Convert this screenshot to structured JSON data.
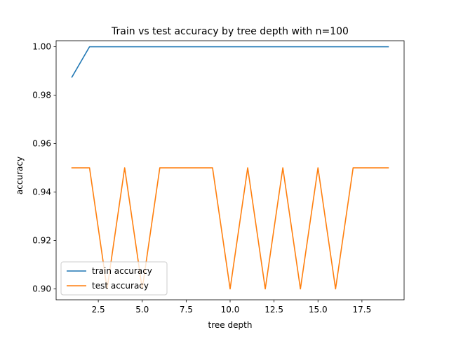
{
  "chart_data": {
    "type": "line",
    "title": "Train vs test accuracy by tree depth with n=100",
    "xlabel": "tree depth",
    "ylabel": "accuracy",
    "xlim": [
      0.1,
      19.9
    ],
    "ylim": [
      0.8955,
      1.0025
    ],
    "xticks": [
      2.5,
      5.0,
      7.5,
      10.0,
      12.5,
      15.0,
      17.5
    ],
    "xtick_labels": [
      "2.5",
      "5.0",
      "7.5",
      "10.0",
      "12.5",
      "15.0",
      "17.5"
    ],
    "yticks": [
      0.9,
      0.92,
      0.94,
      0.96,
      0.98,
      1.0
    ],
    "ytick_labels": [
      "0.90",
      "0.92",
      "0.94",
      "0.96",
      "0.98",
      "1.00"
    ],
    "grid": false,
    "legend_position": "lower-left",
    "x": [
      1,
      2,
      3,
      4,
      5,
      6,
      7,
      8,
      9,
      10,
      11,
      12,
      13,
      14,
      15,
      16,
      17,
      18,
      19
    ],
    "series": [
      {
        "name": "train accuracy",
        "color": "#1f77b4",
        "values": [
          0.9875,
          1.0,
          1.0,
          1.0,
          1.0,
          1.0,
          1.0,
          1.0,
          1.0,
          1.0,
          1.0,
          1.0,
          1.0,
          1.0,
          1.0,
          1.0,
          1.0,
          1.0,
          1.0
        ]
      },
      {
        "name": "test accuracy",
        "color": "#ff7f0e",
        "values": [
          0.95,
          0.95,
          0.9,
          0.95,
          0.9,
          0.95,
          0.95,
          0.95,
          0.95,
          0.9,
          0.95,
          0.9,
          0.95,
          0.9,
          0.95,
          0.9,
          0.95,
          0.95,
          0.95
        ]
      }
    ]
  }
}
